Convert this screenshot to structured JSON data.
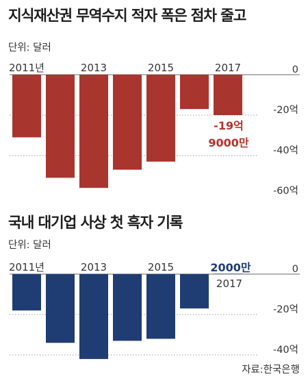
{
  "chart_data": [
    {
      "type": "bar",
      "title": "지식재산권 무역수지 적자 폭은 점차 줄고",
      "unit_label": "단위: 달러",
      "categories": [
        "2011",
        "2012",
        "2013",
        "2014",
        "2015",
        "2016",
        "2017"
      ],
      "x_tick_labels": [
        "2011년",
        "2013",
        "2015",
        "2017"
      ],
      "values": [
        -31,
        -51,
        -56,
        -47,
        -43,
        -17,
        -20
      ],
      "ylim": [
        -60,
        0
      ],
      "y_ticks": [
        0,
        -20,
        -40,
        -60
      ],
      "y_tick_labels": [
        "0",
        "-20억",
        "-40억",
        "-60억"
      ],
      "grid": true,
      "colors": {
        "bar": "#a8352e",
        "annotation": "#b8322b"
      },
      "annotation": {
        "category": "2017",
        "text_line1": "-19억",
        "text_line2": "9000만"
      }
    },
    {
      "type": "bar",
      "title": "국내 대기업 사상 첫 흑자 기록",
      "unit_label": "단위: 달러",
      "categories": [
        "2011",
        "2012",
        "2013",
        "2014",
        "2015",
        "2016",
        "2017"
      ],
      "x_tick_labels": [
        "2011년",
        "2013",
        "2015",
        "2017"
      ],
      "values": [
        -18,
        -34,
        -42,
        -33,
        -32,
        -17,
        0.2
      ],
      "ylim": [
        -40,
        0
      ],
      "y_ticks": [
        0,
        -20,
        -40
      ],
      "y_tick_labels": [
        "0",
        "-20억",
        "-40억"
      ],
      "grid": true,
      "colors": {
        "bar": "#1f3d72",
        "annotation": "#1f3d72"
      },
      "annotation": {
        "category": "2017",
        "text": "2000만"
      }
    }
  ],
  "source": "자료:한국은행"
}
